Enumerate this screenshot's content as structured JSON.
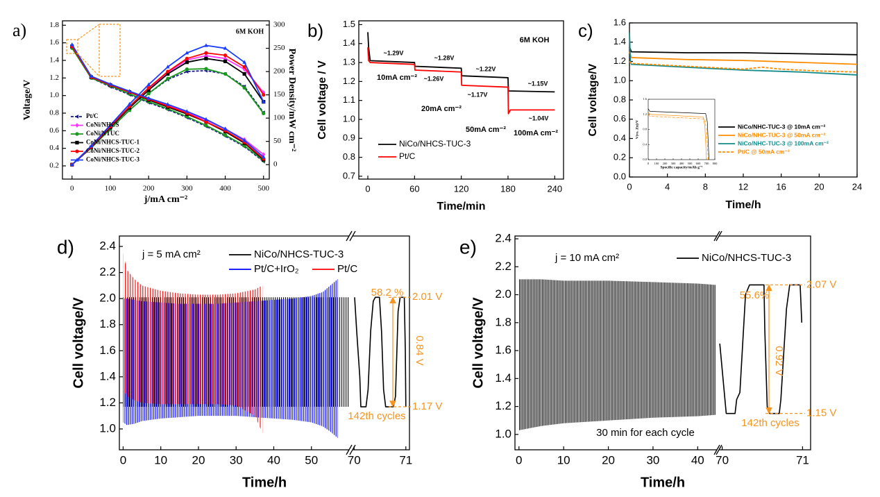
{
  "chart_data": [
    {
      "type": "line",
      "label": "a)",
      "xlabel": "j/mA cm⁻²",
      "ylabel": "Voltage/V",
      "y2label": "Power Density/mW cm⁻²",
      "x": [
        0,
        50,
        100,
        150,
        200,
        250,
        300,
        350,
        400,
        450,
        500
      ],
      "xlim": [
        -25,
        515
      ],
      "xticks": [
        0,
        100,
        200,
        300,
        400,
        500
      ],
      "ylim": [
        0.05,
        1.85
      ],
      "yticks": [
        0.2,
        0.4,
        0.6,
        0.8,
        {
          "value": 1,
          "label": "1.0"
        },
        1.2,
        1.4,
        1.6,
        1.8
      ],
      "y2lim": [
        -31,
        309
      ],
      "y2ticks": [
        0,
        50,
        100,
        150,
        200,
        250,
        300
      ],
      "annotations": [
        "6M KOH"
      ],
      "series": [
        {
          "name": "Pt/C",
          "color": "#1a1a8c",
          "marker": "triangle-left",
          "dash": true,
          "values": [
            1.55,
            1.2,
            1.1,
            1.01,
            0.92,
            0.84,
            0.75,
            0.65,
            0.54,
            0.42,
            0.25
          ],
          "y2_values": [
            0,
            36,
            77,
            117,
            153,
            183,
            200,
            202,
            195,
            168,
            112
          ]
        },
        {
          "name": "CoNi/NHCS",
          "color": "#ff33ff",
          "marker": "diamond",
          "values": [
            1.55,
            1.21,
            1.12,
            1.04,
            0.96,
            0.89,
            0.81,
            0.72,
            0.62,
            0.5,
            0.33
          ],
          "y2_values": [
            0,
            37,
            80,
            122,
            162,
            198,
            225,
            234,
            228,
            205,
            155
          ]
        },
        {
          "name": "CoNi/NTUC",
          "color": "#1a9a1a",
          "marker": "circle",
          "values": [
            1.54,
            1.2,
            1.11,
            1.02,
            0.93,
            0.85,
            0.76,
            0.66,
            0.55,
            0.43,
            0.26
          ],
          "y2_values": [
            0,
            36,
            77,
            117,
            153,
            185,
            205,
            206,
            195,
            165,
            110
          ]
        },
        {
          "name": "CoNi/NHCS-TUC-1",
          "color": "#000000",
          "marker": "square",
          "values": [
            1.56,
            1.21,
            1.12,
            1.04,
            0.95,
            0.87,
            0.79,
            0.7,
            0.59,
            0.46,
            0.27
          ],
          "y2_values": [
            0,
            37,
            80,
            122,
            160,
            195,
            220,
            228,
            222,
            195,
            135
          ]
        },
        {
          "name": "CoNi/NHCS-TUC-2",
          "color": "#ff0000",
          "marker": "circle",
          "values": [
            1.56,
            1.21,
            1.12,
            1.04,
            0.96,
            0.88,
            0.8,
            0.7,
            0.6,
            0.47,
            0.28
          ],
          "y2_values": [
            0,
            38,
            82,
            125,
            165,
            200,
            228,
            240,
            235,
            210,
            150
          ]
        },
        {
          "name": "CoNi/NHCS-TUC-3",
          "color": "#1a3cff",
          "marker": "triangle-up",
          "values": [
            1.58,
            1.22,
            1.13,
            1.05,
            0.97,
            0.9,
            0.82,
            0.73,
            0.62,
            0.49,
            0.3
          ],
          "y2_values": [
            0,
            40,
            85,
            130,
            172,
            210,
            240,
            256,
            250,
            220,
            135
          ]
        }
      ]
    },
    {
      "type": "line",
      "label": "b)",
      "xlabel": "Time/min",
      "ylabel": "Cell voltage / V",
      "xlim": [
        -11.6,
        251.3
      ],
      "xticks": [
        0,
        60,
        120,
        180,
        240
      ],
      "ylim": [
        0.685,
        1.52
      ],
      "yticks": [
        0.7,
        0.8,
        0.9,
        {
          "value": 1,
          "label": "1.0"
        },
        1.1,
        1.2,
        1.3,
        1.4,
        1.5
      ],
      "annotations": [
        "6M KOH",
        "~1.29V",
        "~1.28V",
        "~1.26V",
        "~1.22V",
        "~1.17V",
        "~1.15V",
        "~1.04V",
        "10mA cm⁻²",
        "20mA cm⁻²",
        "50mA cm⁻²",
        "100mA cm⁻²"
      ],
      "series": [
        {
          "name": "NiCo/NHCS-TUC-3",
          "color": "#000000",
          "x": [
            0,
            1,
            3,
            60,
            60.5,
            120,
            120.5,
            180,
            180.5,
            240
          ],
          "values": [
            1.46,
            1.38,
            1.31,
            1.3,
            1.28,
            1.27,
            1.23,
            1.22,
            1.15,
            1.145
          ]
        },
        {
          "name": "Pt/C",
          "color": "#ff0000",
          "x": [
            0,
            1,
            3,
            60,
            60.5,
            120,
            120.5,
            180,
            180.5,
            183,
            240
          ],
          "values": [
            1.38,
            1.31,
            1.3,
            1.29,
            1.26,
            1.25,
            1.18,
            1.17,
            1.03,
            1.05,
            1.05
          ]
        }
      ]
    },
    {
      "type": "line",
      "label": "c)",
      "xlabel": "Time/h",
      "ylabel": "Cell voltage/V",
      "xlim": [
        0,
        24
      ],
      "xticks": [
        0,
        4,
        8,
        12,
        16,
        20,
        24
      ],
      "ylim": [
        0,
        1.6
      ],
      "yticks": [
        {
          "value": 0,
          "label": "0.0"
        },
        0.2,
        0.4,
        0.6,
        0.8,
        {
          "value": 1,
          "label": "1.0"
        },
        1.2,
        1.4,
        1.6
      ],
      "series": [
        {
          "name": "NiCo/NHC-TUC-3 @ 10mA cm⁻²",
          "color": "#000000",
          "x": [
            0,
            0.2,
            6,
            12,
            18,
            24
          ],
          "values": [
            1.35,
            1.3,
            1.29,
            1.29,
            1.28,
            1.27
          ]
        },
        {
          "name": "NiCo/NHC-TUC-3 @ 50mA cm⁻²",
          "color": "#ff8c00",
          "x": [
            0,
            0.2,
            6,
            12,
            18,
            24
          ],
          "values": [
            1.3,
            1.24,
            1.22,
            1.21,
            1.19,
            1.17
          ]
        },
        {
          "name": "NiCo/NHC-TUC-3 @ 100mA cm⁻²",
          "color": "#138a8a",
          "x": [
            0,
            0.1,
            0.2,
            6,
            12,
            18,
            24
          ],
          "values": [
            1.5,
            1.2,
            1.17,
            1.14,
            1.11,
            1.09,
            1.06
          ]
        },
        {
          "name": "Pt/C @ 50mA cm⁻²",
          "color": "#ff8c00",
          "dash": true,
          "x": [
            0,
            0.2,
            4,
            8,
            12,
            14,
            16,
            20,
            24
          ],
          "values": [
            1.2,
            1.18,
            1.16,
            1.14,
            1.12,
            1.14,
            1.12,
            1.1,
            1.09
          ]
        }
      ],
      "inset": {
        "type": "line",
        "xlabel": "Specific capacity/mAh g⁻¹",
        "ylabel": "V(vs. Zn)/V",
        "xlim": [
          0,
          800
        ],
        "xticks": [
          0,
          100,
          200,
          300,
          400,
          500,
          600,
          700,
          800
        ],
        "ylim": [
          0,
          1.6
        ],
        "yticks": [
          {
            "value": 0,
            "label": "0.0"
          },
          0.4,
          0.8,
          1.2,
          1.6
        ],
        "series": [
          {
            "color": "#000000",
            "x": [
              0,
              20,
              690,
              710,
              730
            ],
            "values": [
              1.35,
              1.28,
              1.22,
              1.0,
              0
            ]
          },
          {
            "color": "#ff8c00",
            "x": [
              0,
              20,
              660,
              680,
              700
            ],
            "values": [
              1.25,
              1.2,
              1.13,
              0.9,
              0
            ]
          },
          {
            "color": "#ff8c00",
            "dash": true,
            "x": [
              0,
              20,
              680,
              700,
              720
            ],
            "values": [
              1.2,
              1.15,
              1.08,
              0.8,
              0
            ]
          }
        ]
      }
    },
    {
      "type": "band",
      "label": "d)",
      "xlabel": "Time/h",
      "ylabel": "Cell voltage/V",
      "xlim": [
        [
          -1,
          60
        ],
        [
          69.97,
          71.07
        ]
      ],
      "xticks": [
        0,
        10,
        20,
        30,
        40,
        50,
        70,
        71
      ],
      "ylim": [
        0.84,
        2.48
      ],
      "yticks": [
        {
          "value": 1,
          "label": "1.0"
        },
        1.2,
        1.4,
        1.6,
        1.8,
        {
          "value": 2,
          "label": "2.0"
        },
        2.2,
        2.4
      ],
      "annotation_color": "#f7941d",
      "annotations": [
        "j = 5 mA cm²",
        "58.2 %",
        "0.84 V",
        "142th cycles"
      ],
      "ref_lines": [
        {
          "value": 2.01,
          "label": "2.01 V"
        },
        {
          "value": 1.17,
          "label": "1.17 V"
        }
      ],
      "series": [
        {
          "name": "NiCo/NHCS-TUC-3",
          "color": "#000000",
          "x": [
            0,
            10,
            20,
            30,
            40,
            50,
            60
          ],
          "upper": [
            2.01,
            2.01,
            2.01,
            2.01,
            2.01,
            2.01,
            2.01
          ],
          "lower": [
            1.17,
            1.17,
            1.17,
            1.17,
            1.17,
            1.17,
            1.17
          ],
          "detail_x": [
            70.01,
            70.05,
            70.11,
            70.13,
            70.23,
            70.27,
            70.32,
            70.37,
            70.41,
            70.49,
            70.53,
            70.57,
            70.61,
            70.76,
            70.8,
            70.85,
            70.89,
            70.97,
            70.99,
            71.0
          ],
          "detail_values": [
            2.01,
            1.75,
            1.4,
            1.17,
            1.17,
            1.3,
            1.75,
            1.98,
            2.01,
            2.01,
            1.75,
            1.3,
            1.17,
            1.17,
            1.25,
            1.9,
            2.01,
            2.01,
            1.6,
            1.17
          ]
        },
        {
          "name": "Pt/C+IrO₂",
          "color": "#0000ff",
          "x": [
            0,
            1,
            3,
            5,
            10,
            15,
            20,
            25,
            30,
            35,
            40,
            45,
            50,
            53,
            55,
            57
          ],
          "upper": [
            2.0,
            2.0,
            1.99,
            1.98,
            1.97,
            1.96,
            1.96,
            1.96,
            1.97,
            1.98,
            1.99,
            2.0,
            2.02,
            2.05,
            2.1,
            2.15
          ],
          "lower": [
            1.05,
            1.03,
            1.04,
            1.06,
            1.08,
            1.09,
            1.1,
            1.1,
            1.1,
            1.09,
            1.08,
            1.07,
            1.05,
            1.02,
            0.98,
            0.93
          ]
        },
        {
          "name": "Pt/C",
          "color": "#ff0000",
          "x": [
            0,
            1,
            3,
            5,
            10,
            15,
            20,
            25,
            30,
            35,
            37
          ],
          "upper": [
            2.35,
            2.22,
            2.15,
            2.1,
            2.06,
            2.04,
            2.03,
            2.03,
            2.04,
            2.07,
            2.1
          ],
          "lower": [
            1.3,
            1.25,
            1.22,
            1.2,
            1.19,
            1.19,
            1.19,
            1.19,
            1.18,
            1.1,
            0.97
          ]
        }
      ]
    },
    {
      "type": "band",
      "label": "e)",
      "xlabel": "Time/h",
      "ylabel": "Cell voltage/V",
      "xlim": [
        [
          -0.9,
          44.3
        ],
        [
          69.96,
          71.1
        ]
      ],
      "xticks": [
        0,
        10,
        20,
        30,
        40,
        70,
        71
      ],
      "ylim": [
        0.89,
        2.42
      ],
      "yticks": [
        {
          "value": 1,
          "label": "1.0"
        },
        1.2,
        1.4,
        1.6,
        1.8,
        {
          "value": 2,
          "label": "2.0"
        },
        2.2,
        2.4
      ],
      "annotation_color": "#f7941d",
      "annotations": [
        "j = 10 mA cm²",
        "55.6%",
        "0.92 V",
        "142th cycles",
        "30 min for each cycle"
      ],
      "ref_lines": [
        {
          "value": 2.07,
          "label": "2.07 V"
        },
        {
          "value": 1.15,
          "label": "1.15 V"
        }
      ],
      "series": [
        {
          "name": "NiCo/NHCS-TUC-3",
          "color": "#000000",
          "x": [
            0,
            5,
            10,
            20,
            30,
            40,
            44
          ],
          "upper": [
            2.11,
            2.11,
            2.1,
            2.1,
            2.09,
            2.08,
            2.07
          ],
          "lower": [
            1.03,
            1.06,
            1.08,
            1.1,
            1.12,
            1.13,
            1.14
          ],
          "detail_x": [
            69.97,
            70.05,
            70.16,
            70.18,
            70.22,
            70.29,
            70.34,
            70.52,
            70.53,
            70.56,
            70.59,
            70.71,
            70.73,
            70.8,
            70.84,
            70.97,
            70.99
          ],
          "detail_values": [
            1.65,
            1.15,
            1.15,
            1.25,
            1.3,
            2.0,
            2.07,
            2.07,
            1.75,
            1.2,
            1.15,
            1.15,
            1.25,
            1.9,
            2.07,
            2.07,
            1.8
          ]
        }
      ]
    }
  ]
}
